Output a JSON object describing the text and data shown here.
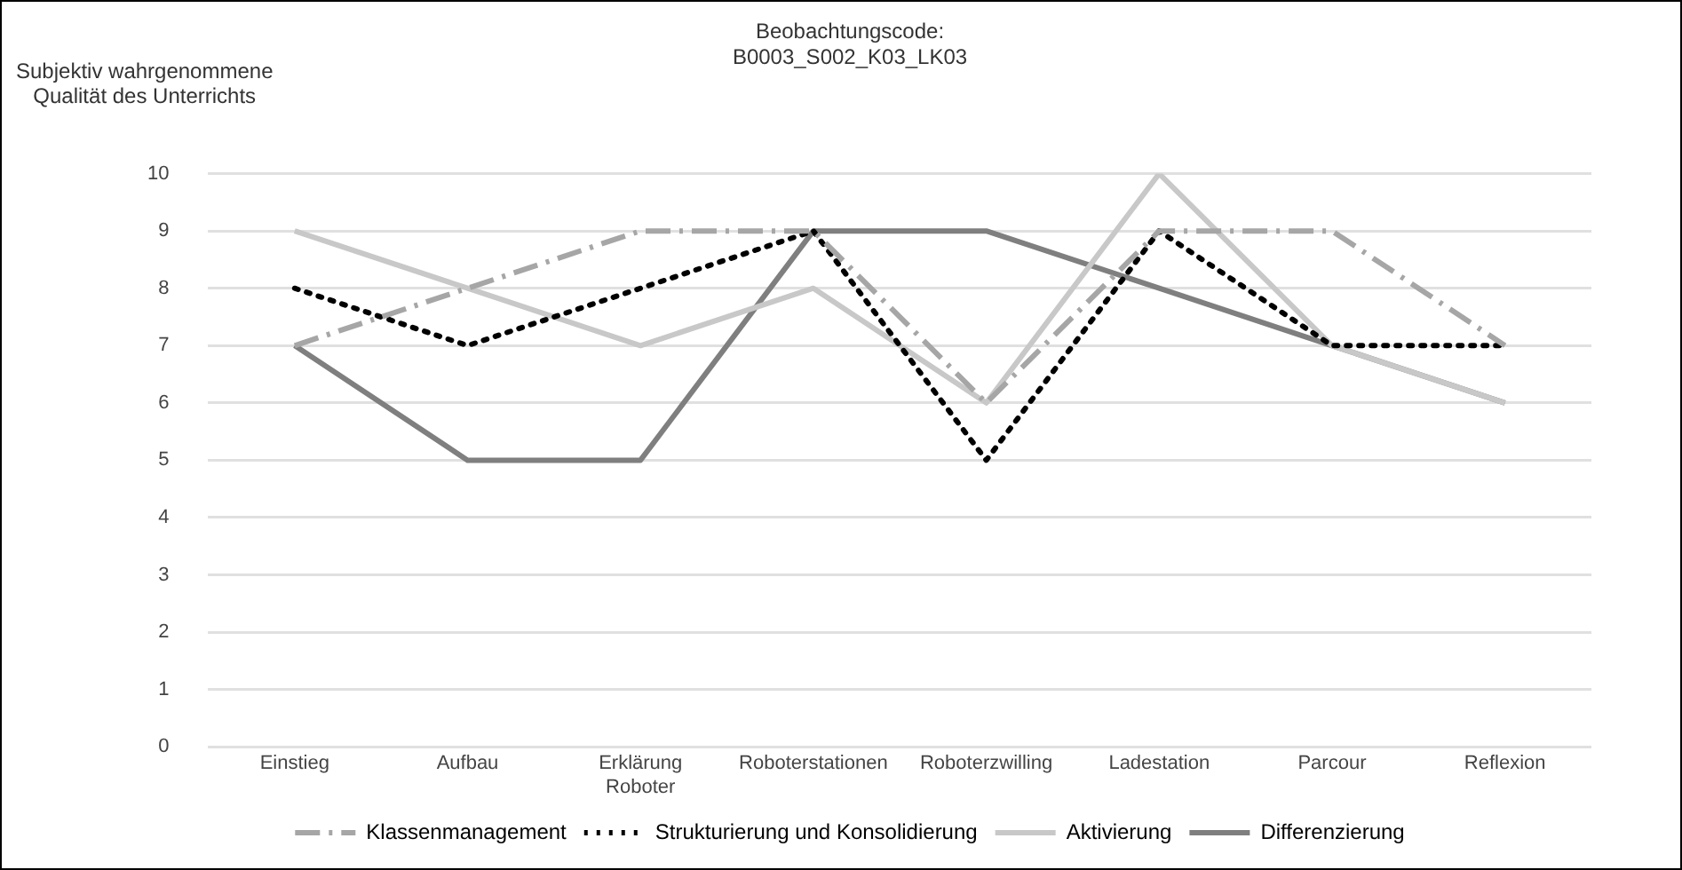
{
  "chart_data": {
    "type": "line",
    "title": "Beobachtungscode:\nB0003_S002_K03_LK03",
    "ylabel": "Subjektiv wahrgenommene\nQualität des Unterrichts",
    "categories": [
      "Einstieg",
      "Aufbau",
      "Erklärung Roboter",
      "Roboterstationen",
      "Roboterzwilling",
      "Ladestation",
      "Parcour",
      "Reflexion"
    ],
    "series": [
      {
        "name": "Klassenmanagement",
        "color": "#a6a6a6",
        "line_style": "dashed",
        "values": [
          7,
          8,
          9,
          9,
          6,
          9,
          9,
          7
        ]
      },
      {
        "name": "Strukturierung und Konsolidierung",
        "color": "#000000",
        "line_style": "dotted",
        "values": [
          8,
          7,
          8,
          9,
          5,
          9,
          7,
          7
        ]
      },
      {
        "name": "Aktivierung",
        "color": "#c8c8c8",
        "line_style": "solid",
        "values": [
          9,
          8,
          7,
          8,
          6,
          10,
          7,
          6
        ]
      },
      {
        "name": "Differenzierung",
        "color": "#7f7f7f",
        "line_style": "solid",
        "values": [
          7,
          5,
          5,
          9,
          9,
          8,
          7,
          6
        ]
      }
    ],
    "ylim": [
      0,
      10
    ],
    "yticks": [
      0,
      1,
      2,
      3,
      4,
      5,
      6,
      7,
      8,
      9,
      10
    ],
    "grid": "y",
    "legend": "bottom",
    "marker": "none"
  }
}
